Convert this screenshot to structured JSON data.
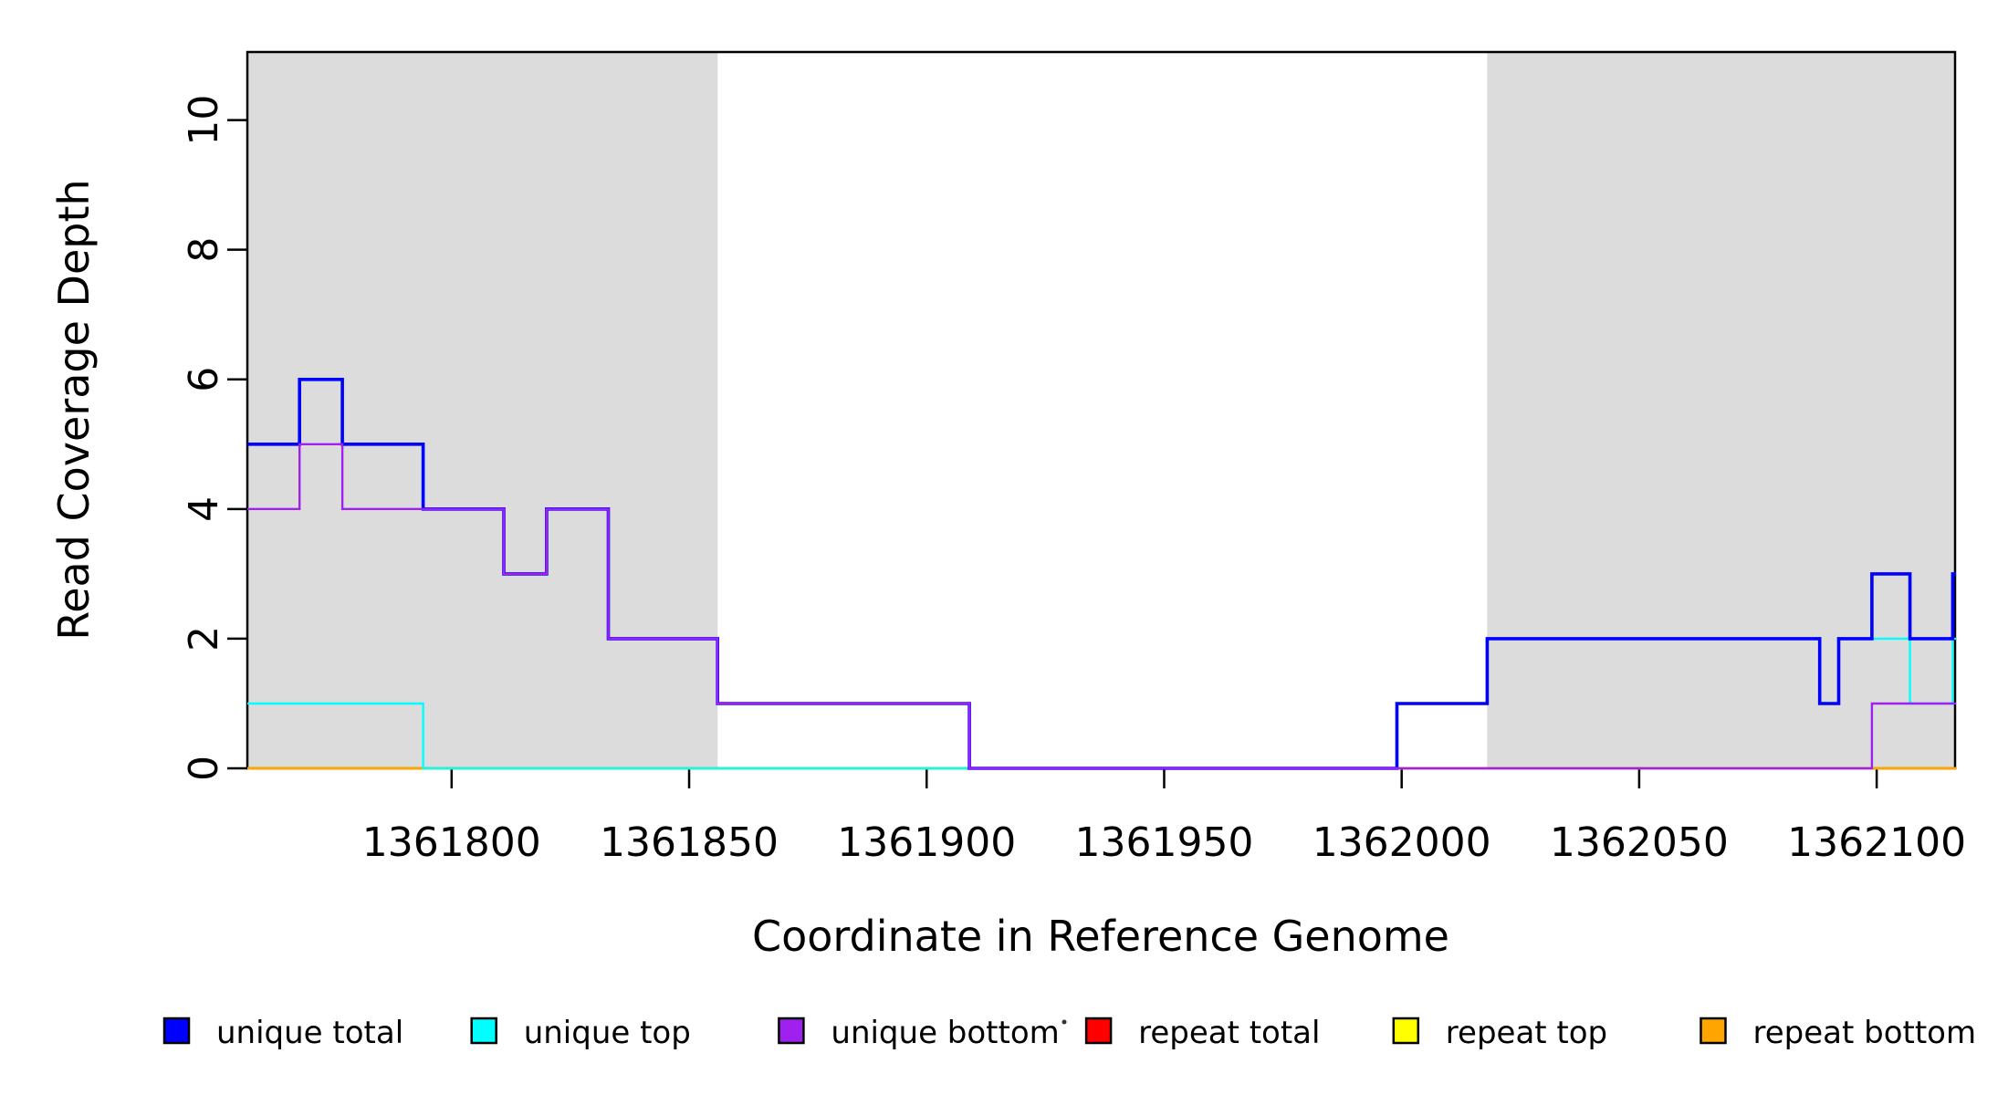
{
  "chart_data": {
    "type": "line",
    "subtype": "step-coverage",
    "title": "",
    "xlabel": "Coordinate in Reference Genome",
    "ylabel": "Read Coverage Depth",
    "xlim": [
      1361757,
      1362116.5
    ],
    "ylim": [
      0,
      11.05
    ],
    "x_ticks": [
      1361800,
      1361850,
      1361900,
      1361950,
      1362000,
      1362050,
      1362100
    ],
    "y_ticks": [
      0,
      2,
      4,
      6,
      8,
      10
    ],
    "grid": false,
    "legend_position": "bottom",
    "background_color": "#ffffff",
    "shaded_region_color": "#DCDCDC",
    "shaded_regions": [
      {
        "x0": 1361757,
        "x1": 1361856
      },
      {
        "x0": 1362018,
        "x1": 1362116.5
      }
    ],
    "series": [
      {
        "name": "repeat total",
        "color": "#FF0000",
        "width": 2.4,
        "steps": [
          [
            1361757,
            0
          ]
        ]
      },
      {
        "name": "repeat top",
        "color": "#FFFF00",
        "width": 2.4,
        "steps": [
          [
            1361757,
            0
          ]
        ]
      },
      {
        "name": "repeat bottom",
        "color": "#FFA500",
        "width": 2.6,
        "steps": [
          [
            1361757,
            0
          ]
        ]
      },
      {
        "name": "unique top",
        "color": "#00FFFF",
        "width": 2.4,
        "steps": [
          [
            1361757,
            1
          ],
          [
            1361794,
            0
          ],
          [
            1361999,
            1
          ],
          [
            1362018,
            2
          ],
          [
            1362088,
            1
          ],
          [
            1362092,
            2
          ],
          [
            1362107,
            1
          ],
          [
            1362116,
            2
          ]
        ]
      },
      {
        "name": "unique total",
        "color": "#0000FF",
        "width": 3.6,
        "steps": [
          [
            1361757,
            5
          ],
          [
            1361768,
            6
          ],
          [
            1361777,
            5
          ],
          [
            1361794,
            4
          ],
          [
            1361811,
            3
          ],
          [
            1361820,
            4
          ],
          [
            1361833,
            2
          ],
          [
            1361856,
            1
          ],
          [
            1361909,
            0
          ],
          [
            1361999,
            1
          ],
          [
            1362018,
            2
          ],
          [
            1362088,
            1
          ],
          [
            1362092,
            2
          ],
          [
            1362099,
            3
          ],
          [
            1362107,
            2
          ],
          [
            1362116,
            3
          ]
        ]
      },
      {
        "name": "unique bottom",
        "color": "#A020F0",
        "width": 2.4,
        "steps": [
          [
            1361757,
            4
          ],
          [
            1361768,
            5
          ],
          [
            1361777,
            4
          ],
          [
            1361811,
            3
          ],
          [
            1361820,
            4
          ],
          [
            1361833,
            2
          ],
          [
            1361856,
            1
          ],
          [
            1361909,
            0
          ],
          [
            1362099,
            1
          ]
        ]
      }
    ]
  },
  "legend": {
    "items": [
      {
        "label": "unique total",
        "color": "#0000FF"
      },
      {
        "label": "unique top",
        "color": "#00FFFF"
      },
      {
        "label": "unique bottom",
        "color": "#A020F0"
      },
      {
        "label": "repeat total",
        "color": "#FF0000"
      },
      {
        "label": "repeat top",
        "color": "#FFFF00"
      },
      {
        "label": "repeat bottom",
        "color": "#FFA500"
      }
    ]
  }
}
